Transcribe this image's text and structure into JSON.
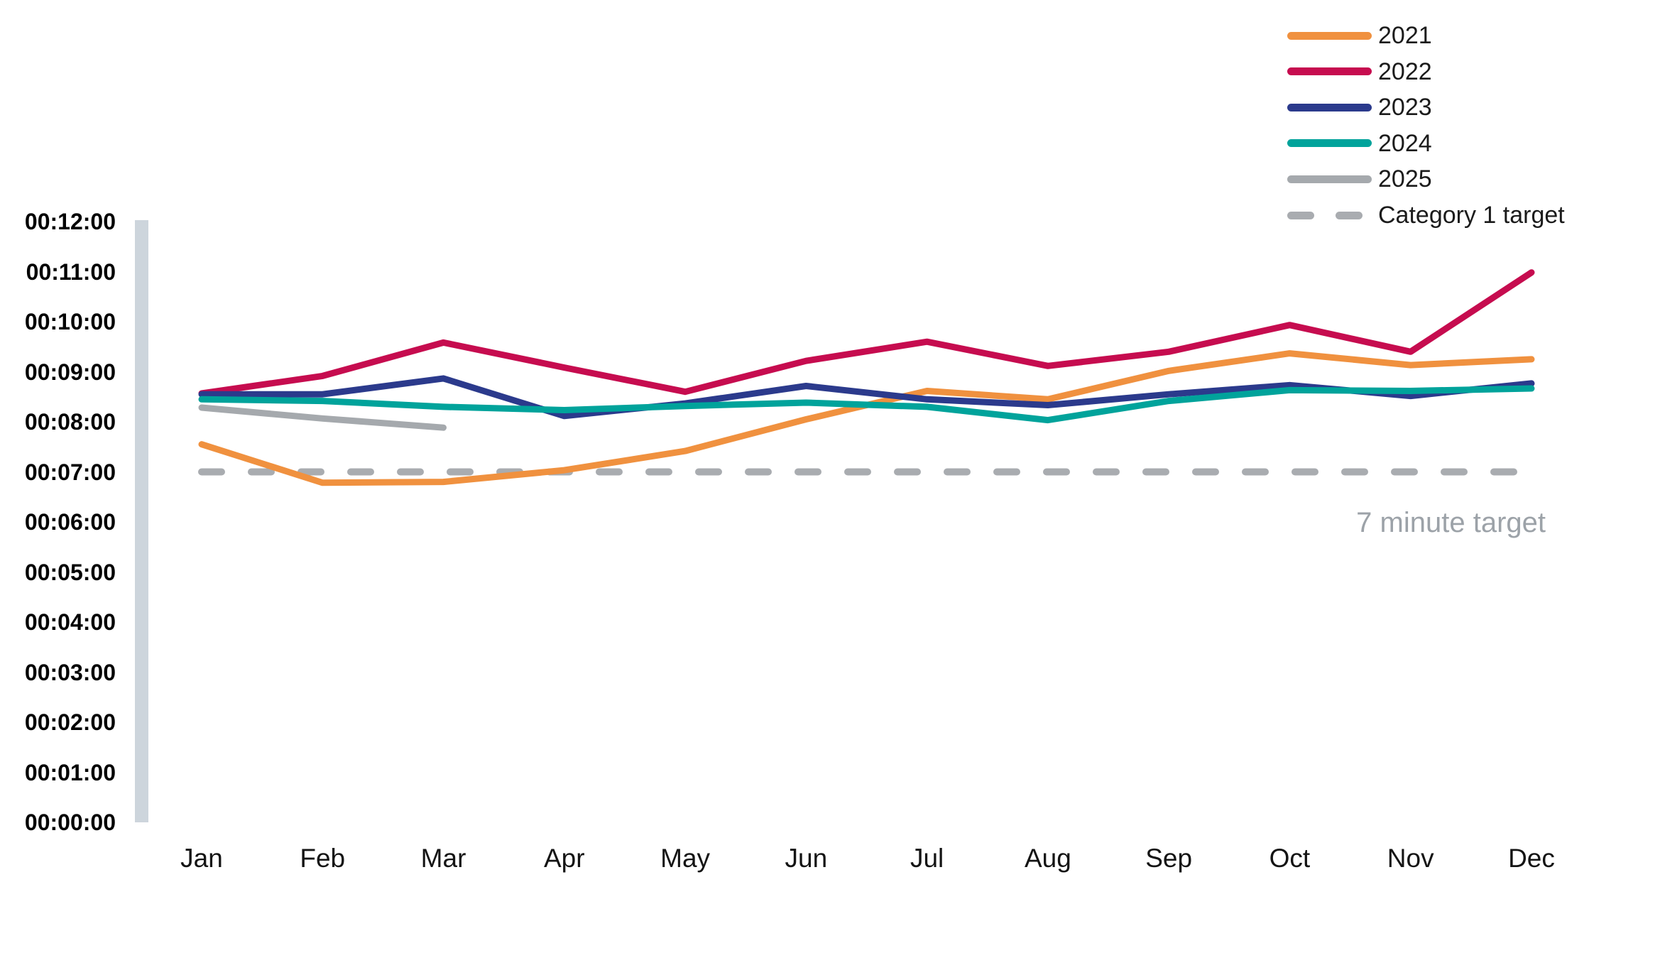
{
  "colors": {
    "series_2021": "#F0913F",
    "series_2022": "#C60C4F",
    "series_2023": "#2B3A8C",
    "series_2024": "#00A39B",
    "series_2025": "#A5A9AD",
    "target_line": "#A9ACB0",
    "annotation_text": "#9CA2A8",
    "y_axis_bar": "#CDD5DC",
    "axis_text": "#000000",
    "month_text": "#141414",
    "legend_text": "#1B1B1B"
  },
  "legend": {
    "position": "top-right",
    "items": [
      {
        "label": "2021",
        "color": "#F0913F",
        "style": "solid"
      },
      {
        "label": "2022",
        "color": "#C60C4F",
        "style": "solid"
      },
      {
        "label": "2023",
        "color": "#2B3A8C",
        "style": "solid"
      },
      {
        "label": "2024",
        "color": "#00A39B",
        "style": "solid"
      },
      {
        "label": "2025",
        "color": "#A5A9AD",
        "style": "solid"
      },
      {
        "label": "Category 1 target",
        "color": "#A9ACB0",
        "style": "dashed"
      }
    ]
  },
  "chart_data": {
    "type": "line",
    "title": "",
    "xlabel": "",
    "ylabel": "",
    "grid": false,
    "legend_position": "top-right",
    "x_categories": [
      "Jan",
      "Feb",
      "Mar",
      "Apr",
      "May",
      "Jun",
      "Jul",
      "Aug",
      "Sep",
      "Oct",
      "Nov",
      "Dec"
    ],
    "y_axis": {
      "tick_labels": [
        "00:12:00",
        "00:11:00",
        "00:10:00",
        "00:09:00",
        "00:08:00",
        "00:07:00",
        "00:06:00",
        "00:05:00",
        "00:04:00",
        "00:03:00",
        "00:02:00",
        "00:01:00",
        "00:00:00"
      ],
      "min_seconds": 0,
      "max_seconds": 720,
      "tick_interval_seconds": 60
    },
    "series": [
      {
        "name": "2021",
        "color": "#F0913F",
        "values_seconds": [
          453,
          407,
          408,
          422,
          445,
          483,
          517,
          507,
          541,
          562,
          548,
          555
        ]
      },
      {
        "name": "2022",
        "color": "#C60C4F",
        "values_seconds": [
          514,
          535,
          575,
          545,
          516,
          553,
          576,
          547,
          564,
          596,
          564,
          659
        ]
      },
      {
        "name": "2023",
        "color": "#2B3A8C",
        "values_seconds": [
          513,
          513,
          532,
          487,
          502,
          523,
          507,
          500,
          513,
          524,
          511,
          526
        ]
      },
      {
        "name": "2024",
        "color": "#00A39B",
        "values_seconds": [
          507,
          505,
          498,
          494,
          499,
          503,
          498,
          482,
          505,
          518,
          517,
          520
        ]
      },
      {
        "name": "2025",
        "color": "#A5A9AD",
        "values_seconds": [
          497,
          484,
          473
        ]
      }
    ],
    "target_line": {
      "label": "Category 1 target",
      "value_seconds": 420,
      "style": "dashed",
      "color": "#A9ACB0",
      "annotation": "7 minute target",
      "annotation_color": "#9CA2A8"
    }
  }
}
